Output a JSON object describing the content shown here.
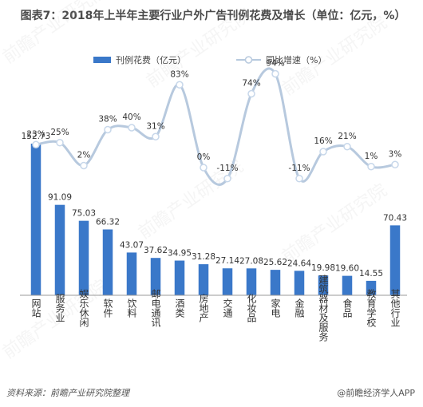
{
  "title": "图表7：2018年上半年主要行业户外广告刊例花费及增长（单位：亿元，%）",
  "source": "资料来源：前瞻产业研究院整理",
  "brand": "@前瞻经济学人APP",
  "watermark": "前瞻产业研究院",
  "colors": {
    "bar": "#3a78c9",
    "line": "#b7c9de",
    "marker": "#c7d7ea"
  },
  "chart_data": {
    "type": "bar",
    "categories": [
      "网站",
      "服务业",
      "娱乐休闲",
      "软件",
      "饮料",
      "邮电通讯",
      "酒类",
      "房地产",
      "交通",
      "化妆品",
      "家电",
      "金融",
      "建筑器材及服务",
      "食品",
      "教育学校",
      "其他行业"
    ],
    "series": [
      {
        "name": "刊例花费（亿元）",
        "type": "bar",
        "values": [
          152.73,
          91.09,
          75.03,
          66.32,
          43.07,
          37.62,
          34.95,
          31.28,
          27.14,
          27.08,
          25.62,
          24.64,
          19.98,
          19.6,
          14.55,
          70.43
        ]
      },
      {
        "name": "同比增速（%）",
        "type": "line",
        "values": [
          23,
          25,
          2,
          38,
          40,
          31,
          83,
          0,
          -11,
          74,
          94,
          -11,
          16,
          21,
          1,
          3
        ]
      }
    ],
    "labels_bar": [
      "152.73",
      "91.09",
      "75.03",
      "66.32",
      "43.07",
      "37.62",
      "34.95",
      "31.28",
      "27.14",
      "27.08",
      "25.62",
      "24.64",
      "19.98",
      "19.60",
      "14.55",
      "70.43"
    ],
    "labels_line": [
      "23%",
      "25%",
      "2%",
      "38%",
      "40%",
      "31%",
      "83%",
      "0%",
      "-11%",
      "74%",
      "94%",
      "-11%",
      "16%",
      "21%",
      "1%",
      "3%"
    ],
    "legend": {
      "position": "top-center"
    },
    "grid": false
  }
}
